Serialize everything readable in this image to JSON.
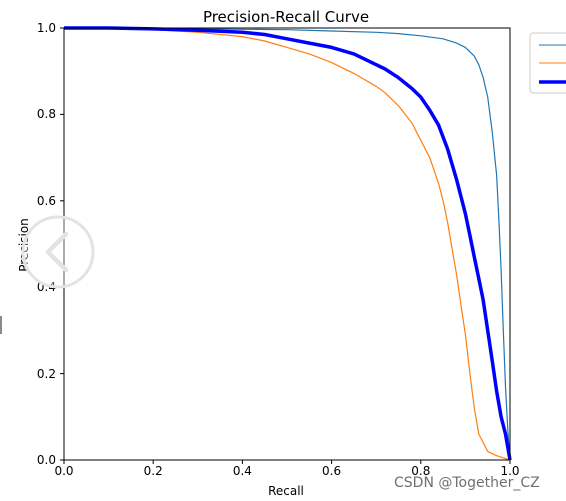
{
  "chart_data": {
    "type": "line",
    "title": "Precision-Recall Curve",
    "xlabel": "Recall",
    "ylabel": "Precision",
    "xlim": [
      0.0,
      1.0
    ],
    "ylim": [
      0.0,
      1.0
    ],
    "xticks": [
      "0.0",
      "0.2",
      "0.4",
      "0.6",
      "0.8",
      "1.0"
    ],
    "yticks": [
      "0.0",
      "0.2",
      "0.4",
      "0.6",
      "0.8",
      "1.0"
    ],
    "grid": false,
    "legend_position": "outside-top-right",
    "series": [
      {
        "color": "#1f77b4",
        "line_width": "thin",
        "points": [
          [
            0.0,
            1.0
          ],
          [
            0.1,
            1.0
          ],
          [
            0.2,
            0.999
          ],
          [
            0.3,
            0.998
          ],
          [
            0.4,
            0.997
          ],
          [
            0.5,
            0.996
          ],
          [
            0.6,
            0.993
          ],
          [
            0.7,
            0.99
          ],
          [
            0.75,
            0.987
          ],
          [
            0.8,
            0.982
          ],
          [
            0.85,
            0.975
          ],
          [
            0.88,
            0.965
          ],
          [
            0.9,
            0.955
          ],
          [
            0.92,
            0.935
          ],
          [
            0.93,
            0.915
          ],
          [
            0.94,
            0.885
          ],
          [
            0.95,
            0.84
          ],
          [
            0.96,
            0.76
          ],
          [
            0.97,
            0.66
          ],
          [
            0.975,
            0.56
          ],
          [
            0.98,
            0.44
          ],
          [
            0.985,
            0.3
          ],
          [
            0.99,
            0.17
          ],
          [
            0.995,
            0.07
          ],
          [
            1.0,
            0.0
          ]
        ]
      },
      {
        "color": "#ff7f0e",
        "line_width": "thin",
        "points": [
          [
            0.0,
            1.0
          ],
          [
            0.1,
            0.999
          ],
          [
            0.2,
            0.996
          ],
          [
            0.3,
            0.99
          ],
          [
            0.4,
            0.98
          ],
          [
            0.45,
            0.97
          ],
          [
            0.5,
            0.955
          ],
          [
            0.55,
            0.94
          ],
          [
            0.6,
            0.92
          ],
          [
            0.65,
            0.895
          ],
          [
            0.7,
            0.865
          ],
          [
            0.72,
            0.85
          ],
          [
            0.75,
            0.82
          ],
          [
            0.78,
            0.78
          ],
          [
            0.8,
            0.74
          ],
          [
            0.82,
            0.7
          ],
          [
            0.84,
            0.64
          ],
          [
            0.85,
            0.6
          ],
          [
            0.86,
            0.55
          ],
          [
            0.87,
            0.49
          ],
          [
            0.88,
            0.43
          ],
          [
            0.89,
            0.36
          ],
          [
            0.9,
            0.29
          ],
          [
            0.91,
            0.2
          ],
          [
            0.92,
            0.12
          ],
          [
            0.93,
            0.06
          ],
          [
            0.95,
            0.02
          ],
          [
            0.97,
            0.01
          ],
          [
            1.0,
            0.0
          ]
        ]
      },
      {
        "color": "#0000ff",
        "line_width": "thick",
        "points": [
          [
            0.0,
            1.0
          ],
          [
            0.1,
            1.0
          ],
          [
            0.2,
            0.998
          ],
          [
            0.3,
            0.995
          ],
          [
            0.4,
            0.99
          ],
          [
            0.45,
            0.985
          ],
          [
            0.5,
            0.975
          ],
          [
            0.55,
            0.965
          ],
          [
            0.6,
            0.955
          ],
          [
            0.65,
            0.94
          ],
          [
            0.7,
            0.915
          ],
          [
            0.72,
            0.905
          ],
          [
            0.75,
            0.885
          ],
          [
            0.78,
            0.86
          ],
          [
            0.8,
            0.84
          ],
          [
            0.82,
            0.81
          ],
          [
            0.84,
            0.775
          ],
          [
            0.86,
            0.72
          ],
          [
            0.88,
            0.65
          ],
          [
            0.9,
            0.57
          ],
          [
            0.91,
            0.52
          ],
          [
            0.92,
            0.47
          ],
          [
            0.93,
            0.42
          ],
          [
            0.94,
            0.37
          ],
          [
            0.95,
            0.3
          ],
          [
            0.96,
            0.23
          ],
          [
            0.97,
            0.16
          ],
          [
            0.98,
            0.1
          ],
          [
            0.99,
            0.06
          ],
          [
            1.0,
            0.0
          ]
        ]
      }
    ]
  },
  "watermark": "CSDN @Together_CZ",
  "overlay": {
    "icon": "circle-chevron-left-icon"
  }
}
